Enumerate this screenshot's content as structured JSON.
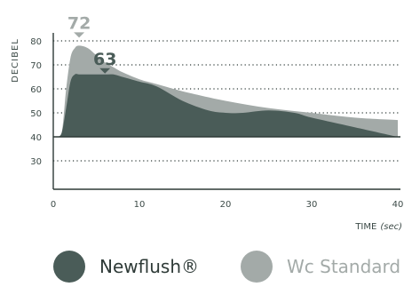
{
  "chart_data": {
    "type": "area",
    "ylabel": "DECIBEL",
    "xlabel": "TIME",
    "xlabel_unit": "(sec)",
    "xlim": [
      0,
      40
    ],
    "ylim": [
      20,
      85
    ],
    "xticks": [
      0,
      10,
      20,
      30,
      40
    ],
    "yticks": [
      30,
      40,
      50,
      60,
      70,
      80
    ],
    "grid": "horizontal dotted",
    "series": [
      {
        "name": "Wc Standard",
        "color": "#a3aaa8",
        "x": [
          0,
          0.5,
          1,
          1.5,
          2,
          2.5,
          3,
          4,
          5,
          6,
          7,
          8,
          10,
          12,
          15,
          20,
          25,
          30,
          35,
          40
        ],
        "values": [
          40,
          40,
          42,
          60,
          73,
          77,
          78,
          77,
          74,
          71,
          69,
          67,
          64,
          62,
          59,
          55,
          52,
          50,
          48,
          47
        ]
      },
      {
        "name": "Newflush®",
        "color": "#4a5c58",
        "x": [
          0,
          0.5,
          1,
          1.5,
          2,
          2.5,
          3,
          4,
          5,
          6,
          7,
          8,
          10,
          12,
          15,
          18,
          20,
          22,
          25,
          28,
          30,
          35,
          40
        ],
        "values": [
          40,
          40,
          42,
          52,
          63,
          66,
          66,
          66,
          66,
          66,
          66,
          65,
          63,
          61,
          55,
          51,
          50,
          50,
          51,
          50,
          48,
          44,
          40
        ]
      }
    ],
    "annotations": [
      {
        "label": "72",
        "x": 3,
        "color": "#a3aaa8"
      },
      {
        "label": "63",
        "x": 6,
        "color": "#4a5c58"
      }
    ],
    "legend": {
      "position": "bottom",
      "items": [
        {
          "label": "Newflush®",
          "color": "#4a5c58"
        },
        {
          "label": "Wc Standard",
          "color": "#a3aaa8"
        }
      ]
    }
  }
}
